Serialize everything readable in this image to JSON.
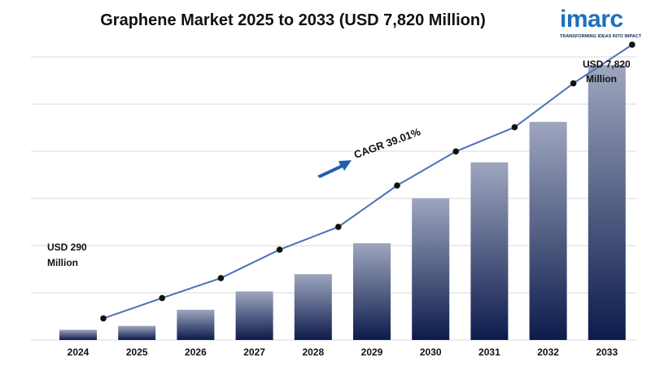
{
  "chart_data": {
    "type": "bar",
    "title": "Graphene Market 2025 to 2033 (USD 7,820 Million)",
    "xlabel": "",
    "ylabel": "",
    "categories": [
      "2024",
      "2025",
      "2026",
      "2027",
      "2028",
      "2029",
      "2030",
      "2031",
      "2032",
      "2033"
    ],
    "values": [
      290,
      400,
      860,
      1380,
      1870,
      2750,
      4030,
      5050,
      6200,
      7820
    ],
    "trend_values": [
      290,
      840,
      1380,
      2160,
      2780,
      3930,
      4870,
      5530,
      6750,
      7820
    ],
    "ylim": [
      0,
      8000
    ],
    "grid": true,
    "legend": "none",
    "annotations": {
      "start": [
        "USD 290",
        "Million"
      ],
      "end": [
        "USD 7,820",
        "Million"
      ],
      "cagr": "CAGR 39.01%"
    },
    "colors": {
      "bar_top": "#9ea6bf",
      "bar_bottom": "#0d1b4c",
      "line": "#4a72b8",
      "marker": "#111111",
      "arrow": "#1f5fb0",
      "grid": "#d9d9d9"
    }
  },
  "logo": {
    "word": "imarc",
    "tagline": "TRANSFORMING IDEAS INTO IMPACT"
  }
}
